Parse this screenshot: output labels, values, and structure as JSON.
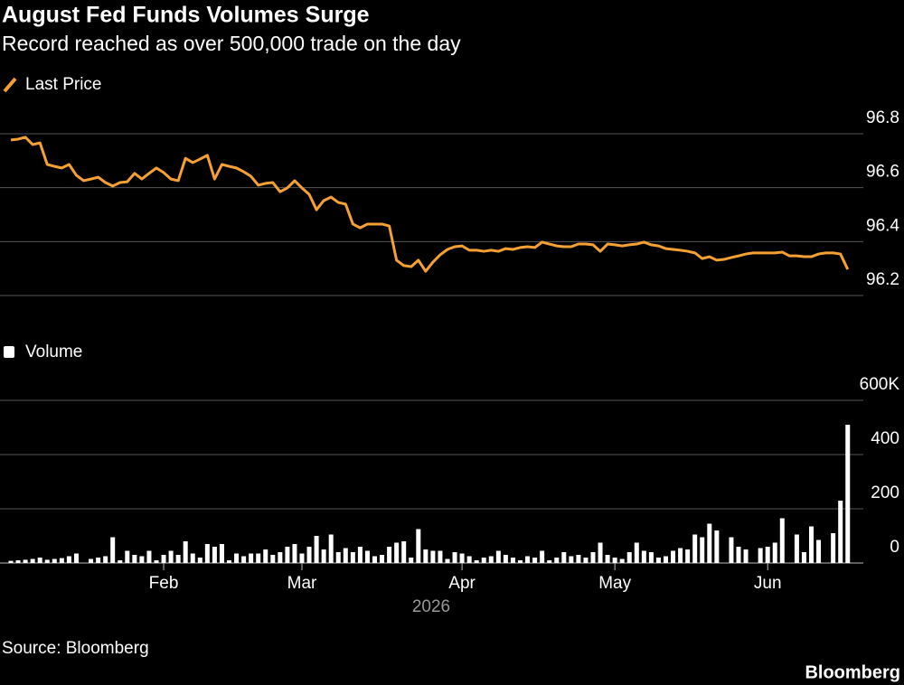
{
  "chart_data": [
    {
      "type": "line",
      "title": "August Fed Funds Volumes Surge",
      "subtitle": "Record reached as over 500,000 trade on the day",
      "series": [
        {
          "name": "Last Price",
          "color": "#f5a033",
          "values": [
            96.777,
            96.78,
            96.787,
            96.76,
            96.766,
            96.686,
            96.679,
            96.673,
            96.686,
            96.646,
            96.626,
            96.632,
            96.639,
            96.619,
            96.606,
            96.619,
            96.622,
            96.653,
            96.632,
            96.653,
            96.673,
            96.656,
            96.632,
            96.626,
            96.709,
            96.693,
            96.706,
            96.72,
            96.632,
            96.686,
            96.679,
            96.673,
            96.659,
            96.642,
            96.609,
            96.616,
            96.619,
            96.585,
            96.599,
            96.626,
            96.599,
            96.575,
            96.518,
            96.552,
            96.565,
            96.545,
            96.539,
            96.465,
            96.451,
            96.465,
            96.465,
            96.465,
            96.458,
            96.331,
            96.311,
            96.307,
            96.331,
            96.29,
            96.324,
            96.351,
            96.371,
            96.381,
            96.384,
            96.368,
            96.368,
            96.364,
            96.368,
            96.364,
            96.374,
            96.371,
            96.378,
            96.381,
            96.378,
            96.398,
            96.391,
            96.384,
            96.381,
            96.381,
            96.391,
            96.391,
            96.388,
            96.364,
            96.391,
            96.388,
            96.384,
            96.388,
            96.391,
            96.398,
            96.388,
            96.384,
            96.374,
            96.371,
            96.368,
            96.364,
            96.358,
            96.337,
            96.344,
            96.331,
            96.334,
            96.341,
            96.347,
            96.354,
            96.358,
            96.358,
            96.358,
            96.358,
            96.361,
            96.347,
            96.347,
            96.344,
            96.344,
            96.354,
            96.358,
            96.358,
            96.354,
            96.297
          ]
        }
      ],
      "ylim": [
        96.2,
        96.8
      ],
      "yticks": [
        96.2,
        96.4,
        96.6,
        96.8
      ],
      "grid": true
    },
    {
      "type": "bar",
      "x_label": "2026",
      "categories": [
        null,
        null,
        null,
        null,
        null,
        null,
        null,
        null,
        null,
        null,
        null,
        null,
        null,
        null,
        null,
        null,
        null,
        null,
        null,
        null,
        null,
        "Feb",
        null,
        null,
        null,
        null,
        null,
        null,
        null,
        null,
        null,
        null,
        null,
        null,
        null,
        null,
        null,
        null,
        null,
        null,
        "Mar",
        null,
        null,
        null,
        null,
        null,
        null,
        null,
        null,
        null,
        null,
        null,
        null,
        null,
        null,
        null,
        null,
        null,
        null,
        null,
        null,
        null,
        "Apr",
        null,
        null,
        null,
        null,
        null,
        null,
        null,
        null,
        null,
        null,
        null,
        null,
        null,
        null,
        null,
        null,
        null,
        null,
        null,
        null,
        "May",
        null,
        null,
        null,
        null,
        null,
        null,
        null,
        null,
        null,
        null,
        null,
        null,
        null,
        null,
        null,
        null,
        null,
        null,
        null,
        null,
        "Jun",
        null,
        null,
        null,
        null,
        null,
        null,
        null,
        null,
        null,
        null,
        null
      ],
      "series": [
        {
          "name": "Volume",
          "color": "#ffffff",
          "values": [
            8,
            10,
            12,
            15,
            20,
            12,
            15,
            18,
            25,
            35,
            0,
            15,
            20,
            25,
            95,
            10,
            45,
            30,
            25,
            45,
            10,
            30,
            45,
            30,
            80,
            35,
            20,
            70,
            60,
            70,
            10,
            35,
            25,
            35,
            35,
            50,
            30,
            40,
            60,
            70,
            35,
            60,
            100,
            50,
            105,
            40,
            55,
            40,
            60,
            45,
            25,
            30,
            60,
            75,
            80,
            20,
            125,
            50,
            45,
            45,
            15,
            40,
            35,
            25,
            10,
            20,
            25,
            45,
            30,
            20,
            10,
            25,
            20,
            45,
            10,
            20,
            40,
            25,
            30,
            20,
            40,
            75,
            30,
            20,
            15,
            40,
            75,
            45,
            40,
            20,
            25,
            45,
            55,
            50,
            105,
            95,
            145,
            120,
            0,
            95,
            60,
            50,
            0,
            55,
            60,
            75,
            165,
            0,
            105,
            40,
            135,
            85,
            0,
            110,
            230,
            510
          ]
        }
      ],
      "ylim": [
        0,
        600
      ],
      "yticks": [
        0,
        200,
        400,
        {
          "value": 600,
          "label": "600K"
        }
      ],
      "grid": true
    }
  ],
  "source": "Source: Bloomberg",
  "brand": "Bloomberg"
}
